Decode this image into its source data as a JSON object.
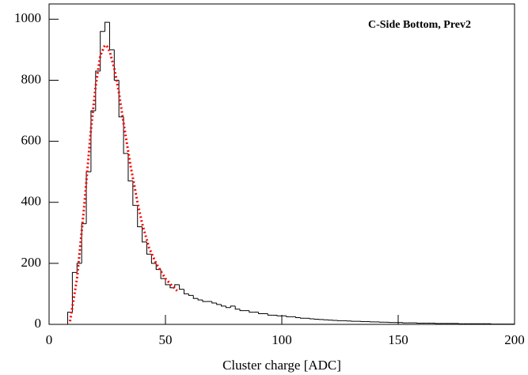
{
  "chart_data": {
    "type": "histogram",
    "annotation": "C-Side Bottom, Prev2",
    "xlabel": "Cluster charge [ADC]",
    "bins": [
      0,
      2,
      4,
      6,
      8,
      10,
      12,
      14,
      16,
      18,
      20,
      22,
      24,
      26,
      28,
      30,
      32,
      34,
      36,
      38,
      40,
      42,
      44,
      46,
      48,
      50,
      52,
      54,
      56,
      58,
      60,
      62,
      64,
      66,
      68,
      70,
      72,
      74,
      76,
      78,
      80,
      82,
      84,
      86,
      88,
      90,
      92,
      94,
      96,
      98,
      100,
      102,
      104,
      106,
      108,
      110,
      112,
      114,
      116,
      118,
      120,
      122,
      124,
      126,
      128,
      130,
      132,
      134,
      136,
      138,
      140,
      142,
      144,
      146,
      148,
      150,
      152,
      154,
      156,
      158,
      160,
      162,
      164,
      166,
      168,
      170,
      172,
      174,
      176,
      178,
      180,
      182,
      184,
      186,
      188,
      190,
      192,
      194,
      196,
      198,
      200
    ],
    "counts": [
      0,
      0,
      0,
      0,
      40,
      170,
      200,
      330,
      500,
      700,
      830,
      960,
      990,
      900,
      800,
      680,
      560,
      470,
      390,
      320,
      270,
      230,
      200,
      180,
      150,
      130,
      120,
      130,
      115,
      100,
      95,
      85,
      80,
      75,
      75,
      70,
      65,
      60,
      55,
      60,
      50,
      45,
      45,
      40,
      40,
      35,
      35,
      30,
      30,
      28,
      28,
      25,
      25,
      22,
      20,
      20,
      18,
      17,
      16,
      15,
      14,
      13,
      12,
      12,
      11,
      10,
      10,
      9,
      9,
      8,
      8,
      7,
      7,
      6,
      6,
      6,
      5,
      5,
      5,
      4,
      4,
      4,
      4,
      3,
      3,
      3,
      3,
      3,
      2,
      2,
      2,
      2,
      2,
      2,
      2,
      1,
      1,
      1,
      1,
      1
    ],
    "color": "#000000",
    "fit": {
      "color": "#ff0000",
      "x": [
        9,
        12,
        15,
        18,
        20,
        22,
        24,
        25,
        26,
        28,
        30,
        32,
        35,
        38,
        40,
        43,
        46,
        50,
        53,
        55
      ],
      "values": [
        10,
        150,
        380,
        640,
        780,
        880,
        915,
        910,
        895,
        840,
        760,
        660,
        520,
        400,
        330,
        250,
        200,
        150,
        125,
        110
      ]
    },
    "xlim": [
      0,
      200
    ],
    "ylim": [
      0,
      1050
    ],
    "xticks": [
      0,
      50,
      100,
      150,
      200
    ],
    "yticks": [
      0,
      200,
      400,
      600,
      800,
      1000
    ]
  }
}
